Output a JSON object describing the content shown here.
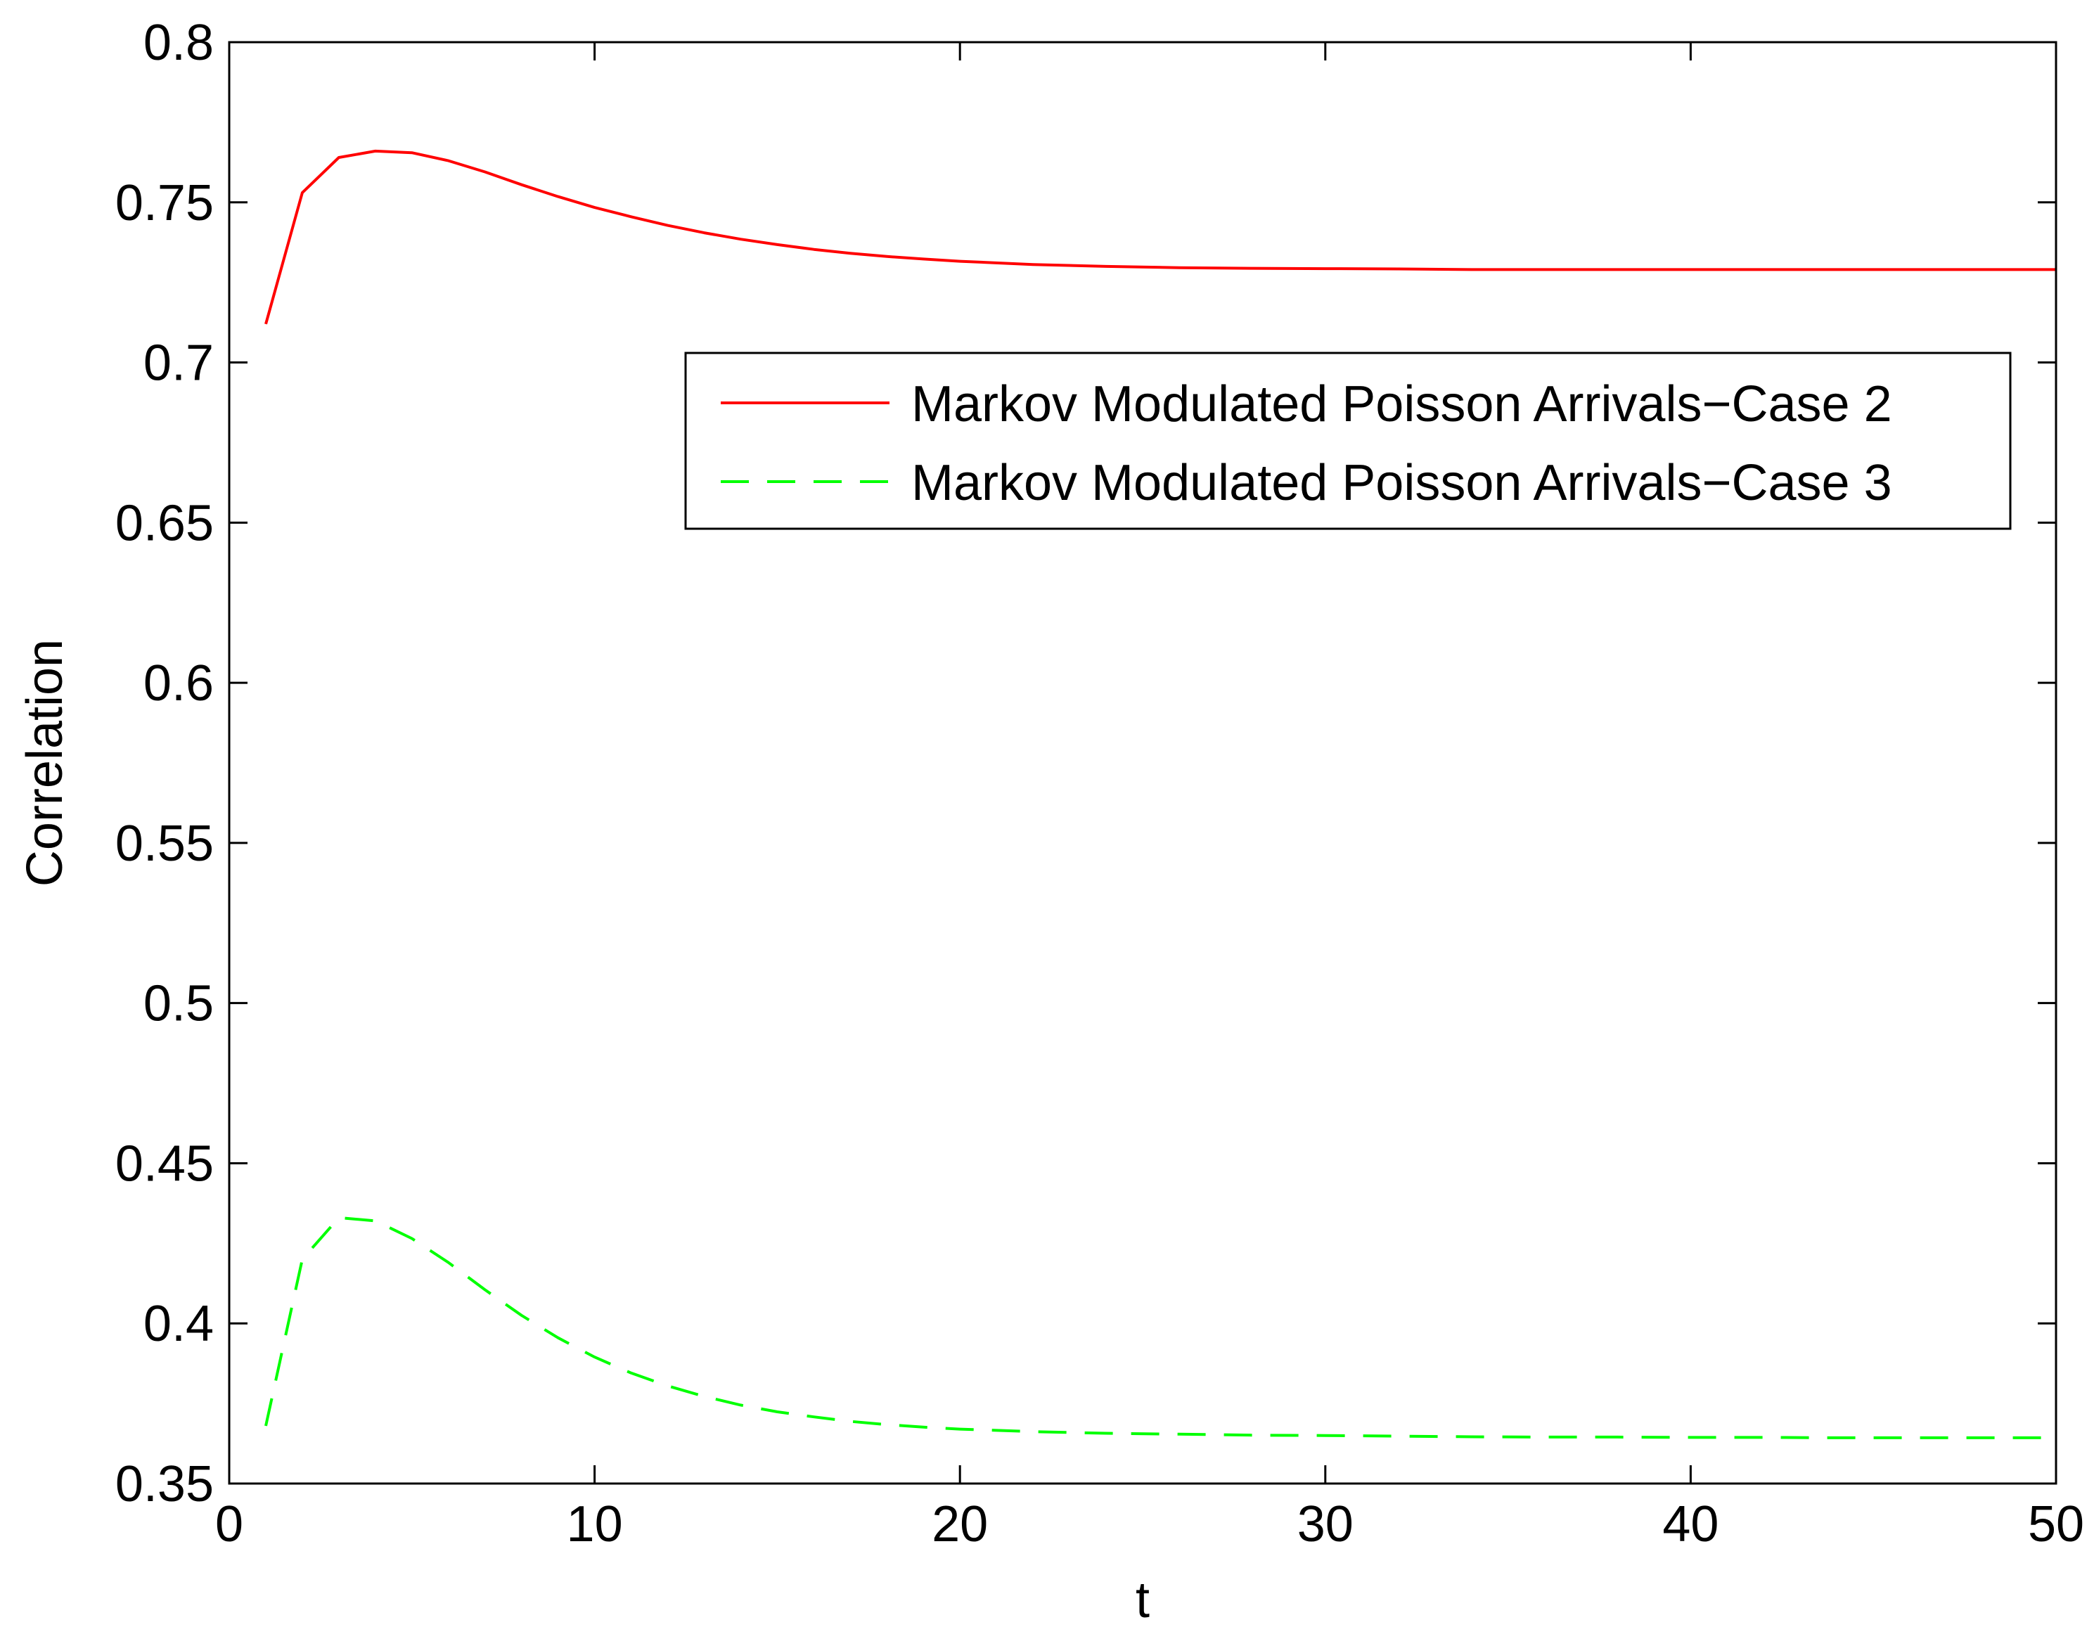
{
  "chart_data": {
    "type": "line",
    "title": "",
    "xlabel": "t",
    "ylabel": "Correlation",
    "xlim": [
      0,
      50
    ],
    "ylim": [
      0.35,
      0.8
    ],
    "xticks": [
      0,
      10,
      20,
      30,
      40,
      50
    ],
    "xtick_labels": [
      "0",
      "10",
      "20",
      "30",
      "40",
      "50"
    ],
    "yticks": [
      0.35,
      0.4,
      0.45,
      0.5,
      0.55,
      0.6,
      0.65,
      0.7,
      0.75,
      0.8
    ],
    "ytick_labels": [
      "0.35",
      "0.4",
      "0.45",
      "0.5",
      "0.55",
      "0.6",
      "0.65",
      "0.7",
      "0.75",
      "0.8"
    ],
    "grid": false,
    "legend_position": "upper-right",
    "series": [
      {
        "name": "Markov Modulated Poisson Arrivals−Case 2",
        "color": "#ff0000",
        "style": "solid",
        "x": [
          1,
          2,
          3,
          4,
          5,
          6,
          7,
          8,
          9,
          10,
          11,
          12,
          13,
          14,
          15,
          16,
          17,
          18,
          19,
          20,
          22,
          24,
          26,
          28,
          30,
          32,
          34,
          36,
          38,
          40,
          42,
          44,
          46,
          48,
          50
        ],
        "y": [
          0.712,
          0.753,
          0.764,
          0.766,
          0.7655,
          0.763,
          0.7595,
          0.7555,
          0.7518,
          0.7484,
          0.7455,
          0.7428,
          0.7405,
          0.7385,
          0.7368,
          0.7353,
          0.7341,
          0.7331,
          0.7323,
          0.7316,
          0.7306,
          0.73,
          0.7296,
          0.7294,
          0.7293,
          0.7292,
          0.729,
          0.729,
          0.729,
          0.729,
          0.729,
          0.729,
          0.729,
          0.729,
          0.729
        ]
      },
      {
        "name": "Markov Modulated Poisson Arrivals−Case 3",
        "color": "#00ff00",
        "style": "dashed",
        "x": [
          1,
          2,
          3,
          4,
          5,
          6,
          7,
          8,
          9,
          10,
          11,
          12,
          13,
          14,
          15,
          16,
          17,
          18,
          19,
          20,
          22,
          24,
          26,
          28,
          30,
          32,
          34,
          36,
          38,
          40,
          42,
          44,
          46,
          48,
          50
        ],
        "y": [
          0.368,
          0.42,
          0.433,
          0.432,
          0.4265,
          0.419,
          0.4105,
          0.4025,
          0.3955,
          0.3895,
          0.3845,
          0.3805,
          0.3772,
          0.3745,
          0.3724,
          0.3708,
          0.3694,
          0.3684,
          0.3676,
          0.367,
          0.3662,
          0.3657,
          0.3654,
          0.3651,
          0.365,
          0.3648,
          0.3646,
          0.3645,
          0.3645,
          0.3644,
          0.3644,
          0.3643,
          0.3643,
          0.3643,
          0.3643
        ]
      }
    ]
  }
}
